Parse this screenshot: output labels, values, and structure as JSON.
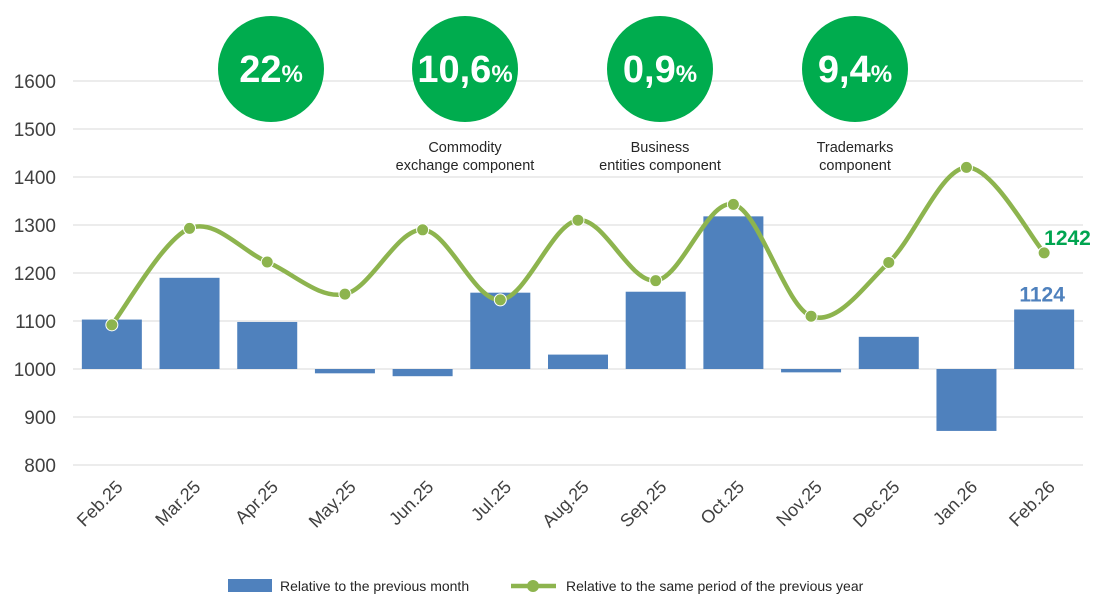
{
  "chart_data": {
    "type": "bar+line",
    "title": "",
    "xlabel": "",
    "ylabel": "",
    "ylim": [
      800,
      1600
    ],
    "yticks": [
      800,
      900,
      1000,
      1100,
      1200,
      1300,
      1400,
      1500,
      1600
    ],
    "bar_baseline": 1000,
    "grid": true,
    "legend_position": "bottom",
    "categories": [
      "Feb.25",
      "Mar.25",
      "Apr.25",
      "May.25",
      "Jun.25",
      "Jul.25",
      "Aug.25",
      "Sep.25",
      "Oct.25",
      "Nov.25",
      "Dec.25",
      "Jan.26",
      "Feb.26"
    ],
    "series": [
      {
        "name": "Relative to the previous month",
        "type": "bar",
        "color": "#4f81bd",
        "values": [
          1103,
          1190,
          1098,
          991,
          985,
          1159,
          1030,
          1161,
          1318,
          993,
          1067,
          871,
          1124
        ]
      },
      {
        "name": "Relative to the same period of the previous year",
        "type": "line",
        "color": "#8db44e",
        "values": [
          1092,
          1293,
          1223,
          1156,
          1290,
          1144,
          1310,
          1184,
          1343,
          1110,
          1222,
          1420,
          1242
        ]
      }
    ],
    "end_labels": {
      "bar": "1124",
      "line": "1242"
    },
    "highlights": [
      {
        "value": "22",
        "unit": "%",
        "label": []
      },
      {
        "value": "10,6",
        "unit": "%",
        "label": [
          "Commodity",
          "exchange component"
        ]
      },
      {
        "value": "0,9",
        "unit": "%",
        "label": [
          "Business",
          "entities component"
        ]
      },
      {
        "value": "9,4",
        "unit": "%",
        "label": [
          "Trademarks",
          "component"
        ]
      }
    ],
    "highlight_color": "#00ac4e"
  }
}
